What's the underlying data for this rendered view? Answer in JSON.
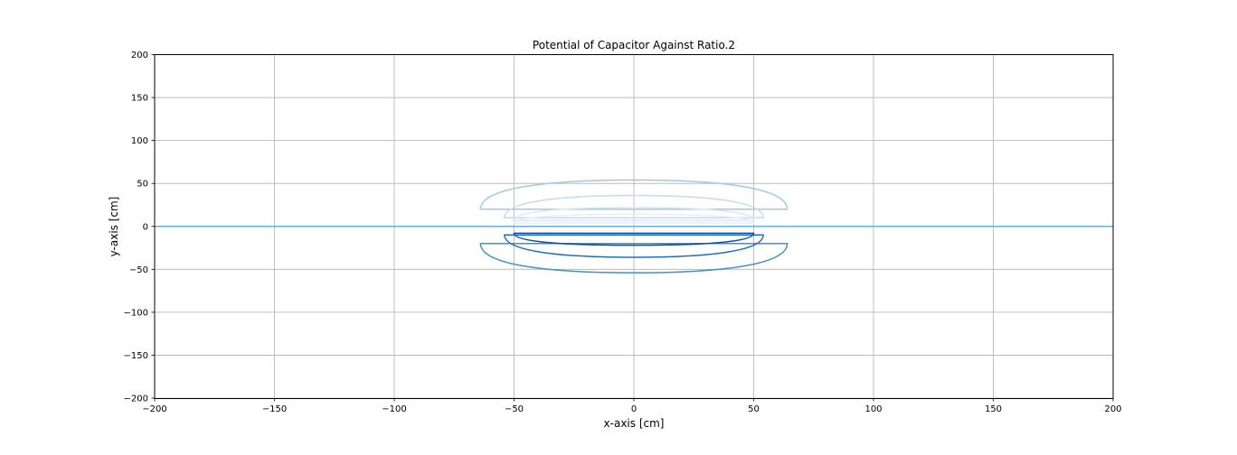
{
  "chart_data": {
    "type": "contour",
    "title": "Potential of Capacitor Against Ratio.2",
    "xlabel": "x-axis [cm]",
    "ylabel": "y-axis [cm]",
    "xlim": [
      -200,
      200
    ],
    "ylim": [
      -200,
      200
    ],
    "x_ticks": [
      -200,
      -150,
      -100,
      -50,
      0,
      50,
      100,
      150,
      200
    ],
    "y_ticks": [
      -200,
      -150,
      -100,
      -50,
      0,
      50,
      100,
      150,
      200
    ],
    "x_tick_labels": [
      "−200",
      "−150",
      "−100",
      "−50",
      "0",
      "50",
      "100",
      "150",
      "200"
    ],
    "y_tick_labels": [
      "−200",
      "−150",
      "−100",
      "−50",
      "0",
      "50",
      "100",
      "150",
      "200"
    ],
    "grid": true,
    "colormap": "Blues",
    "zero_line": {
      "y": 0,
      "x_range": [
        -200,
        200
      ],
      "color": "#6baed6"
    },
    "contours": [
      {
        "side": "upper",
        "color": "#9ecae1",
        "x_range": [
          -64,
          64
        ],
        "y_extent": [
          20,
          54
        ],
        "y_edge": 20
      },
      {
        "side": "upper",
        "color": "#c6dbef",
        "x_range": [
          -54,
          54
        ],
        "y_extent": [
          10,
          36
        ],
        "y_edge": 10
      },
      {
        "side": "upper",
        "color": "#d9e7f5",
        "x_range": [
          -50,
          50
        ],
        "y_extent": [
          7,
          22
        ],
        "y_edge": 7
      },
      {
        "side": "upper",
        "color": "#e6eff8",
        "x_range": [
          -50,
          50
        ],
        "y_extent": [
          4,
          14
        ],
        "y_edge": 4
      },
      {
        "side": "lower",
        "color": "#4292c6",
        "x_range": [
          -64,
          64
        ],
        "y_extent": [
          -20,
          -54
        ],
        "y_edge": -20
      },
      {
        "side": "lower",
        "color": "#2171b5",
        "x_range": [
          -54,
          54
        ],
        "y_extent": [
          -10,
          -36
        ],
        "y_edge": -10
      },
      {
        "side": "lower",
        "color": "#08519c",
        "x_range": [
          -50,
          50
        ],
        "y_extent": [
          -8,
          -22
        ],
        "y_edge": -8
      }
    ]
  }
}
